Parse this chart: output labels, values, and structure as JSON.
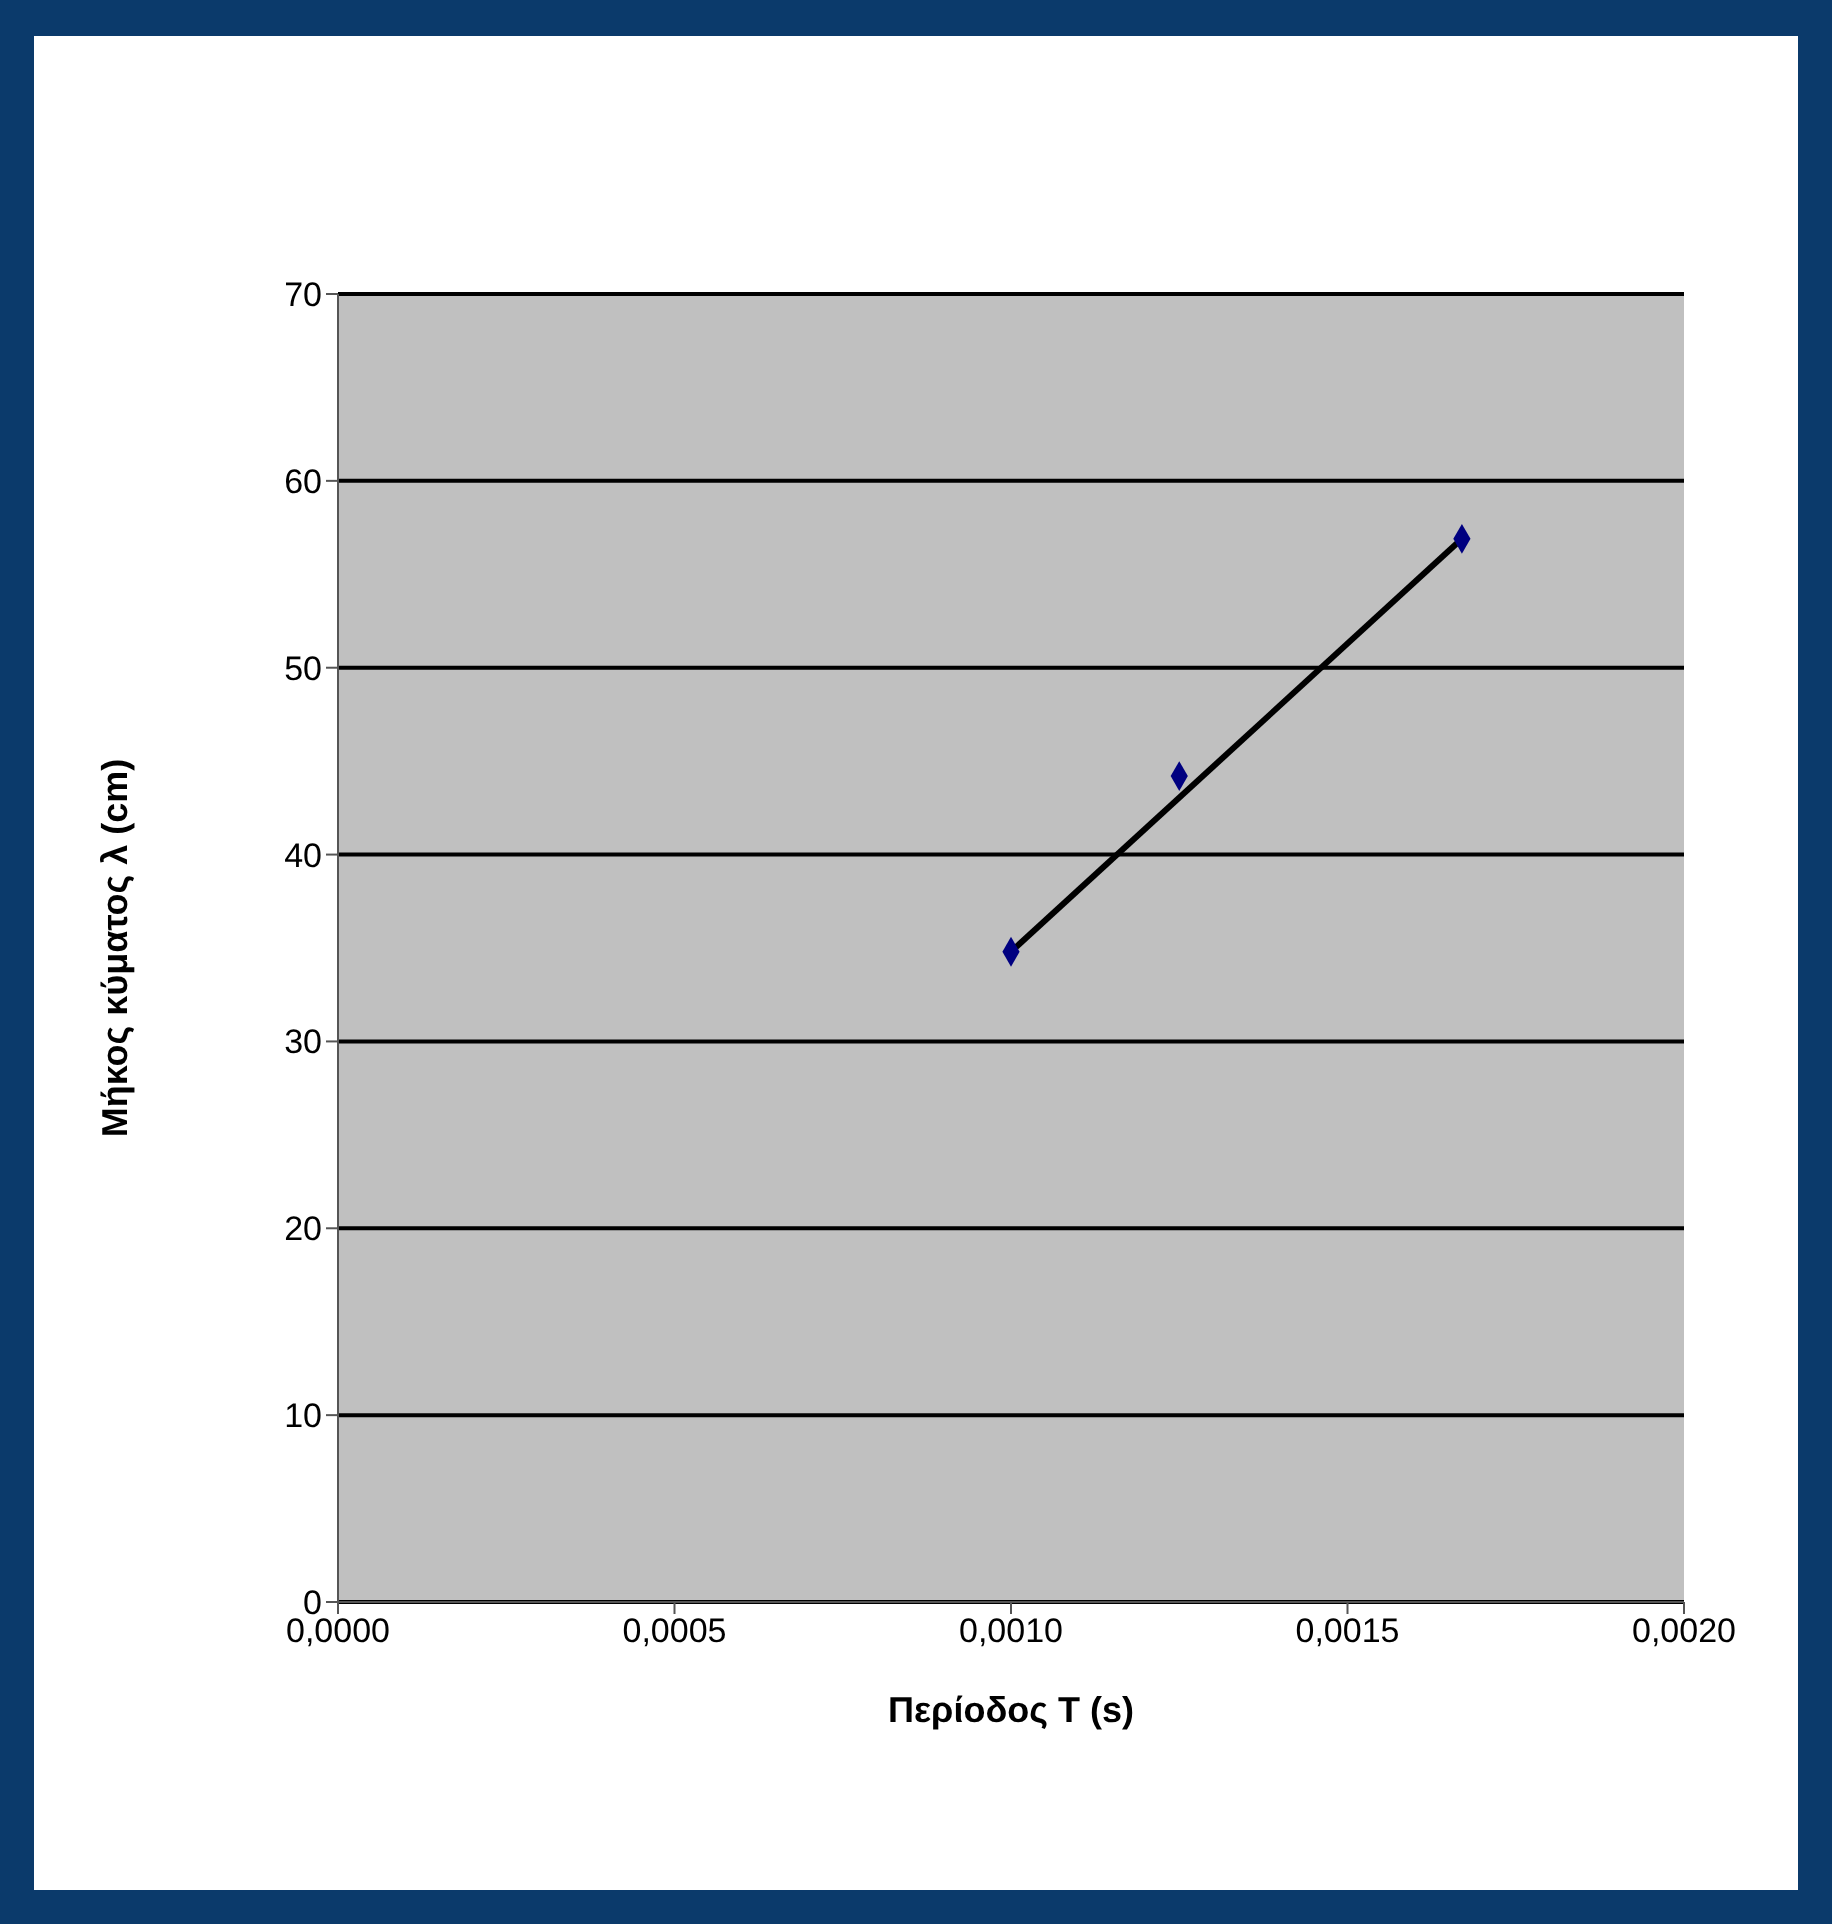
{
  "chart_data": {
    "type": "scatter",
    "xlabel": "Περίοδος T (s)",
    "ylabel": "Μήκος κύματος λ (cm)",
    "xlim": [
      0,
      0.002
    ],
    "xticks": [
      {
        "value": 0,
        "label": "0,0000"
      },
      {
        "value": 0.0005,
        "label": "0,0005"
      },
      {
        "value": 0.001,
        "label": "0,0010"
      },
      {
        "value": 0.0015,
        "label": "0,0015"
      },
      {
        "value": 0.002,
        "label": "0,0020"
      }
    ],
    "ylim": [
      0,
      70
    ],
    "yticks": [
      0,
      10,
      20,
      30,
      40,
      50,
      60,
      70
    ],
    "grid": "y",
    "marker": "diamond",
    "series": [
      {
        "color": "#000080",
        "x": [
          0.001,
          0.00125,
          0.00167
        ],
        "values": [
          34.8,
          44.2,
          56.9
        ]
      },
      {
        "type": "line",
        "color": "#000000",
        "x": [
          0.001,
          0.00167
        ],
        "values": [
          34.8,
          56.9
        ],
        "marker": "none"
      }
    ]
  }
}
